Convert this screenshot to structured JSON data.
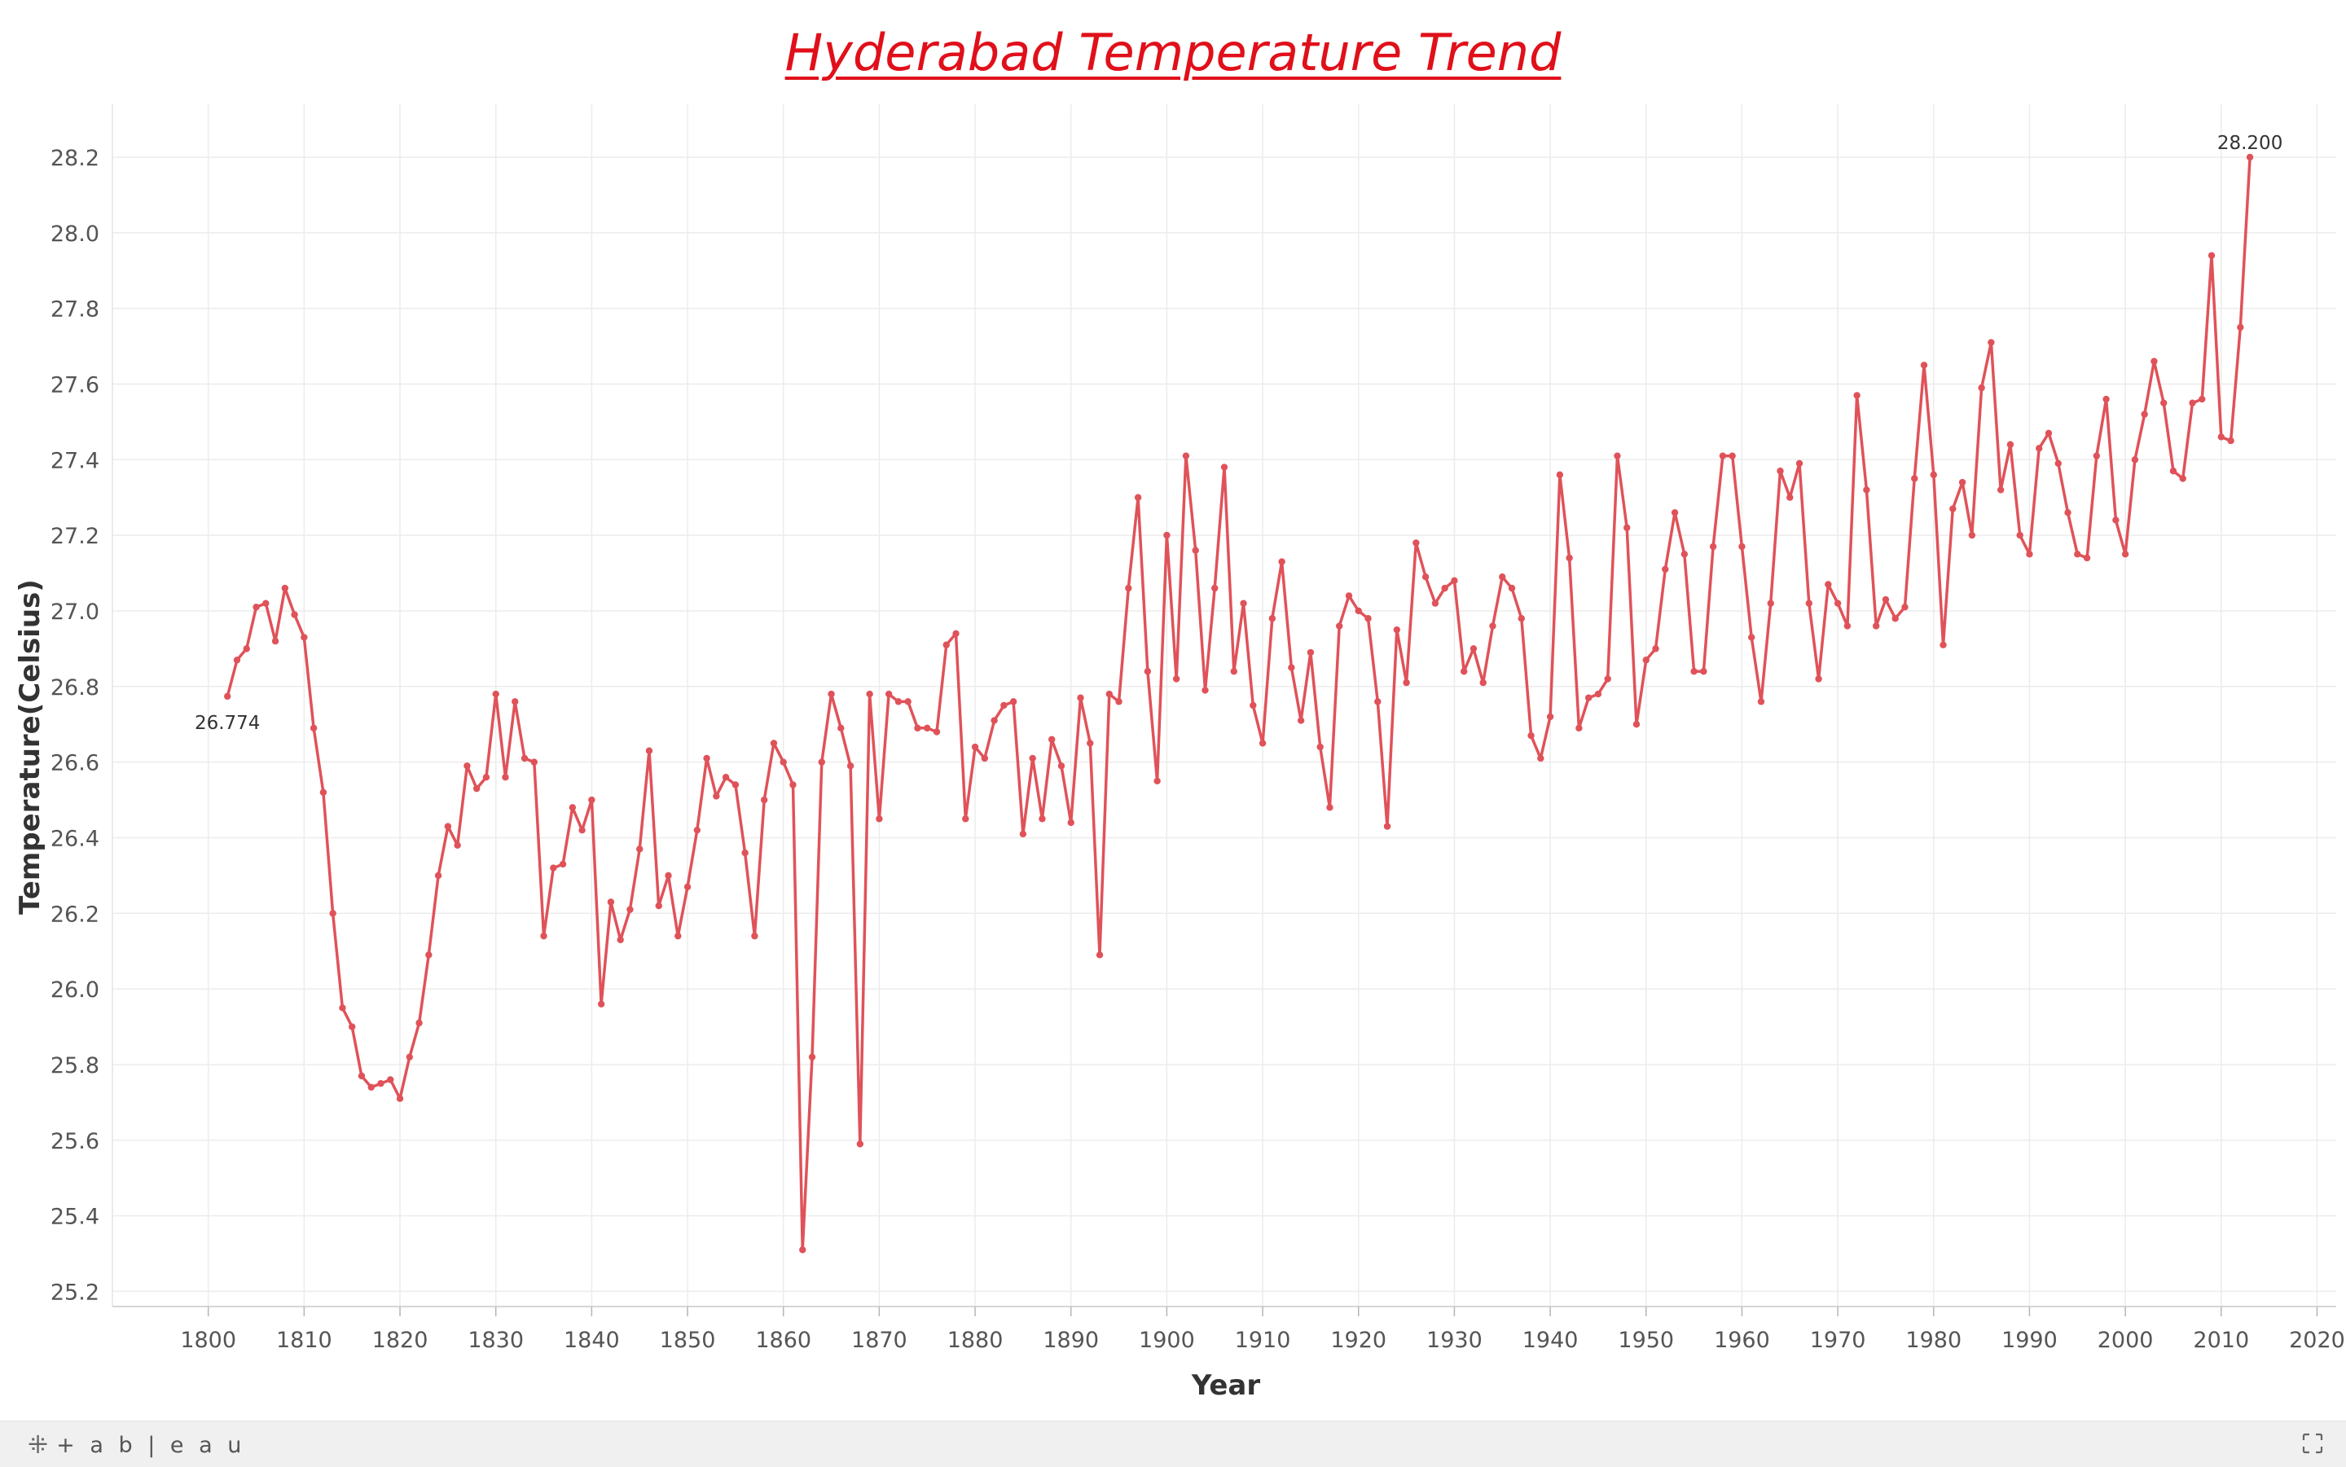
{
  "chart_data": {
    "type": "line",
    "title": "Hyderabad Temperature Trend",
    "xlabel": "Year",
    "ylabel": "Temperature(Celsius)",
    "xlim": [
      1790,
      2022
    ],
    "ylim": [
      25.16,
      28.34
    ],
    "x_ticks": [
      1800,
      1810,
      1820,
      1830,
      1840,
      1850,
      1860,
      1870,
      1880,
      1890,
      1900,
      1910,
      1920,
      1930,
      1940,
      1950,
      1960,
      1970,
      1980,
      1990,
      2000,
      2010,
      2020
    ],
    "y_ticks": [
      25.2,
      25.4,
      25.6,
      25.8,
      26.0,
      26.2,
      26.4,
      26.6,
      26.8,
      27.0,
      27.2,
      27.4,
      27.6,
      27.8,
      28.0,
      28.2
    ],
    "grid": true,
    "colors": {
      "line": "#e05259",
      "title": "#e0101a",
      "grid": "#ececec"
    },
    "annotations": [
      {
        "x": 1802,
        "y": 26.774,
        "text": "26.774",
        "position": "below"
      },
      {
        "x": 2013,
        "y": 28.2,
        "text": "28.200",
        "position": "above"
      }
    ],
    "series": [
      {
        "x": [
          1802,
          1803,
          1804,
          1805,
          1806,
          1807,
          1808,
          1809,
          1810,
          1811,
          1812,
          1813,
          1814,
          1815,
          1816,
          1817,
          1818,
          1819,
          1820,
          1821,
          1822,
          1823,
          1824,
          1825,
          1826,
          1827,
          1828,
          1829,
          1830,
          1831,
          1832,
          1833,
          1834,
          1835,
          1836,
          1837,
          1838,
          1839,
          1840,
          1841,
          1842,
          1843,
          1844,
          1845,
          1846,
          1847,
          1848,
          1849,
          1850,
          1851,
          1852,
          1853,
          1854,
          1855,
          1856,
          1857,
          1858,
          1859,
          1860,
          1861,
          1862,
          1863,
          1864,
          1865,
          1866,
          1867,
          1868,
          1869,
          1870,
          1871,
          1872,
          1873,
          1874,
          1875,
          1876,
          1877,
          1878,
          1879,
          1880,
          1881,
          1882,
          1883,
          1884,
          1885,
          1886,
          1887,
          1888,
          1889,
          1890,
          1891,
          1892,
          1893,
          1894,
          1895,
          1896,
          1897,
          1898,
          1899,
          1900,
          1901,
          1902,
          1903,
          1904,
          1905,
          1906,
          1907,
          1908,
          1909,
          1910,
          1911,
          1912,
          1913,
          1914,
          1915,
          1916,
          1917,
          1918,
          1919,
          1920,
          1921,
          1922,
          1923,
          1924,
          1925,
          1926,
          1927,
          1928,
          1929,
          1930,
          1931,
          1932,
          1933,
          1934,
          1935,
          1936,
          1937,
          1938,
          1939,
          1940,
          1941,
          1942,
          1943,
          1944,
          1945,
          1946,
          1947,
          1948,
          1949,
          1950,
          1951,
          1952,
          1953,
          1954,
          1955,
          1956,
          1957,
          1958,
          1959,
          1960,
          1961,
          1962,
          1963,
          1964,
          1965,
          1966,
          1967,
          1968,
          1969,
          1970,
          1971,
          1972,
          1973,
          1974,
          1975,
          1976,
          1977,
          1978,
          1979,
          1980,
          1981,
          1982,
          1983,
          1984,
          1985,
          1986,
          1987,
          1988,
          1989,
          1990,
          1991,
          1992,
          1993,
          1994,
          1995,
          1996,
          1997,
          1998,
          1999,
          2000,
          2001,
          2002,
          2003,
          2004,
          2005,
          2006,
          2007,
          2008,
          2009,
          2010,
          2011,
          2012,
          2013
        ],
        "y": [
          26.774,
          26.87,
          26.9,
          27.01,
          27.02,
          26.92,
          27.06,
          26.99,
          26.93,
          26.69,
          26.52,
          26.2,
          25.95,
          25.9,
          25.77,
          25.74,
          25.75,
          25.76,
          25.71,
          25.82,
          25.91,
          26.09,
          26.3,
          26.43,
          26.38,
          26.59,
          26.53,
          26.56,
          26.78,
          26.56,
          26.76,
          26.61,
          26.6,
          26.14,
          26.32,
          26.33,
          26.48,
          26.42,
          26.5,
          25.96,
          26.23,
          26.13,
          26.21,
          26.37,
          26.63,
          26.22,
          26.3,
          26.14,
          26.27,
          26.42,
          26.61,
          26.51,
          26.56,
          26.54,
          26.36,
          26.14,
          26.5,
          26.65,
          26.6,
          26.54,
          25.31,
          25.82,
          26.6,
          26.78,
          26.69,
          26.59,
          25.59,
          26.78,
          26.45,
          26.78,
          26.76,
          26.76,
          26.69,
          26.69,
          26.68,
          26.91,
          26.94,
          26.45,
          26.64,
          26.61,
          26.71,
          26.75,
          26.76,
          26.41,
          26.61,
          26.45,
          26.66,
          26.59,
          26.44,
          26.77,
          26.65,
          26.09,
          26.78,
          26.76,
          27.06,
          27.3,
          26.84,
          26.55,
          27.2,
          26.82,
          27.41,
          27.16,
          26.79,
          27.06,
          27.38,
          26.84,
          27.02,
          26.75,
          26.65,
          26.98,
          27.13,
          26.85,
          26.71,
          26.89,
          26.64,
          26.48,
          26.96,
          27.04,
          27.0,
          26.98,
          26.76,
          26.43,
          26.95,
          26.81,
          27.18,
          27.09,
          27.02,
          27.06,
          27.08,
          26.84,
          26.9,
          26.81,
          26.96,
          27.09,
          27.06,
          26.98,
          26.67,
          26.61,
          26.72,
          27.36,
          27.14,
          26.69,
          26.77,
          26.78,
          26.82,
          27.41,
          27.22,
          26.7,
          26.87,
          26.9,
          27.11,
          27.26,
          27.15,
          26.84,
          26.84,
          27.17,
          27.41,
          27.41,
          27.17,
          26.93,
          26.76,
          27.02,
          27.37,
          27.3,
          27.39,
          27.02,
          26.82,
          27.07,
          27.02,
          26.96,
          27.57,
          27.32,
          26.96,
          27.03,
          26.98,
          27.01,
          27.35,
          27.65,
          27.36,
          26.91,
          27.27,
          27.34,
          27.2,
          27.59,
          27.71,
          27.32,
          27.44,
          27.2,
          27.15,
          27.43,
          27.47,
          27.39,
          27.26,
          27.15,
          27.14,
          27.41,
          27.56,
          27.24,
          27.15,
          27.4,
          27.52,
          27.66,
          27.55,
          27.37,
          27.35,
          27.55,
          27.56,
          27.94,
          27.46,
          27.45,
          27.75,
          28.2
        ]
      }
    ]
  },
  "footer": {
    "logo_mark": "⁜",
    "logo_text": "+ a b | e a u"
  }
}
